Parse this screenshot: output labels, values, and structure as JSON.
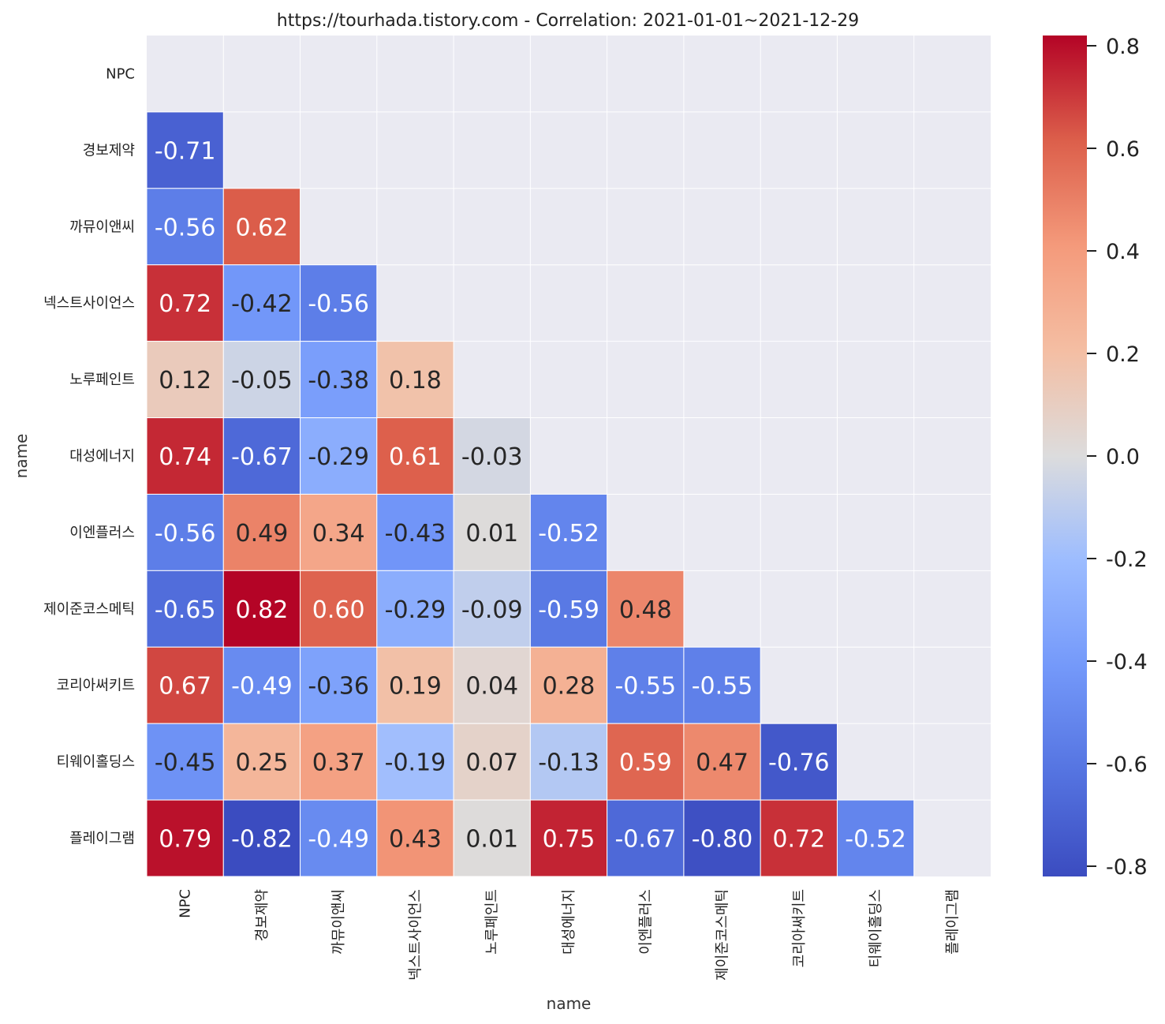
{
  "chart_data": {
    "type": "heatmap",
    "title": "https://tourhada.tistory.com - Correlation: 2021-01-01~2021-12-29",
    "xlabel": "name",
    "ylabel": "name",
    "labels": [
      "NPC",
      "경보제약",
      "까뮤이앤씨",
      "넥스트사이언스",
      "노루페인트",
      "대성에너지",
      "이엔플러스",
      "제이준코스메틱",
      "코리아써키트",
      "티웨이홀딩스",
      "플레이그램"
    ],
    "matrix": [
      [
        null,
        null,
        null,
        null,
        null,
        null,
        null,
        null,
        null,
        null,
        null
      ],
      [
        -0.71,
        null,
        null,
        null,
        null,
        null,
        null,
        null,
        null,
        null,
        null
      ],
      [
        -0.56,
        0.62,
        null,
        null,
        null,
        null,
        null,
        null,
        null,
        null,
        null
      ],
      [
        0.72,
        -0.42,
        -0.56,
        null,
        null,
        null,
        null,
        null,
        null,
        null,
        null
      ],
      [
        0.12,
        -0.05,
        -0.38,
        0.18,
        null,
        null,
        null,
        null,
        null,
        null,
        null
      ],
      [
        0.74,
        -0.67,
        -0.29,
        0.61,
        -0.03,
        null,
        null,
        null,
        null,
        null,
        null
      ],
      [
        -0.56,
        0.49,
        0.34,
        -0.43,
        0.01,
        -0.52,
        null,
        null,
        null,
        null,
        null
      ],
      [
        -0.65,
        0.82,
        0.6,
        -0.29,
        -0.09,
        -0.59,
        0.48,
        null,
        null,
        null,
        null
      ],
      [
        0.67,
        -0.49,
        -0.36,
        0.19,
        0.04,
        0.28,
        -0.55,
        -0.55,
        null,
        null,
        null
      ],
      [
        -0.45,
        0.25,
        0.37,
        -0.19,
        0.07,
        -0.13,
        0.59,
        0.47,
        -0.76,
        null,
        null
      ],
      [
        0.79,
        -0.82,
        -0.49,
        0.43,
        0.01,
        0.75,
        -0.67,
        -0.8,
        0.72,
        -0.52,
        null
      ]
    ],
    "value_format": "0.00",
    "colormap": "coolwarm",
    "vmin": -0.82,
    "vmax": 0.82,
    "colorbar_ticks": [
      0.8,
      0.6,
      0.4,
      0.2,
      0.0,
      -0.2,
      -0.4,
      -0.6,
      -0.8
    ],
    "colorbar_tick_labels": [
      "0.8",
      "0.6",
      "0.4",
      "0.2",
      "0.0",
      "-0.2",
      "-0.4",
      "-0.6",
      "-0.8"
    ],
    "background_color": "#eaeaf2"
  }
}
